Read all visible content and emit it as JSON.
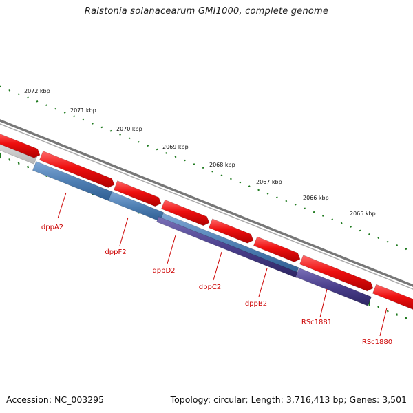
{
  "title": "Ralstonia solanacearum GMI1000, complete genome",
  "footer": {
    "accession_label": "Accession:",
    "accession": "NC_003295",
    "topology_text": "Topology: circular; Length: 3,716,413 bp; Genes: 3,501"
  },
  "colors": {
    "forward_gene": "#ee1111",
    "gene_blue": "#4f7fb3",
    "gene_purple": "#4a3f8c",
    "gene_gray": "#c9c9c9",
    "backbone": "#777777",
    "ticks": "#1f7a1f",
    "label": "#cc0000"
  },
  "scale_labels": [
    "2072 kbp",
    "2071 kbp",
    "2070 kbp",
    "2069 kbp",
    "2068 kbp",
    "2067 kbp",
    "2066 kbp",
    "2065 kbp"
  ],
  "genes": [
    "dppA2",
    "dppF2",
    "dppD2",
    "dppC2",
    "dppB2",
    "RSc1881",
    "RSc1880"
  ]
}
